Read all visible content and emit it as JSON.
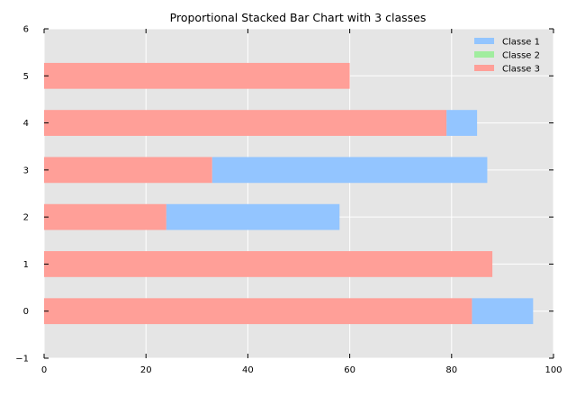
{
  "chart_data": {
    "type": "bar",
    "orientation": "horizontal",
    "stacked": true,
    "title": "Proportional Stacked Bar Chart with 3 classes",
    "xlabel": "",
    "ylabel": "",
    "xlim": [
      0,
      100
    ],
    "ylim": [
      -1,
      6
    ],
    "x_ticks": [
      "0",
      "20",
      "40",
      "60",
      "80",
      "100"
    ],
    "y_ticks": [
      "−1",
      "0",
      "1",
      "2",
      "3",
      "4",
      "5",
      "6"
    ],
    "categories": [
      0,
      1,
      2,
      3,
      4,
      5
    ],
    "series": [
      {
        "name": "Classe 3",
        "color": "#ff9f98",
        "values": [
          84,
          88,
          24,
          33,
          79,
          60
        ]
      },
      {
        "name": "Classe 2",
        "color": "#a1ed9f",
        "values": [
          0,
          0,
          0,
          0,
          0,
          0
        ]
      },
      {
        "name": "Classe 1",
        "color": "#93c5ff",
        "values": [
          12,
          0,
          34,
          54,
          6,
          0
        ]
      }
    ],
    "legend": {
      "position": "top-right",
      "entries": [
        {
          "label": "Classe 1",
          "color": "#93c5ff"
        },
        {
          "label": "Classe 2",
          "color": "#a1ed9f"
        },
        {
          "label": "Classe 3",
          "color": "#ff9f98"
        }
      ]
    },
    "grid": true,
    "plot_background": "#e5e5e5"
  }
}
